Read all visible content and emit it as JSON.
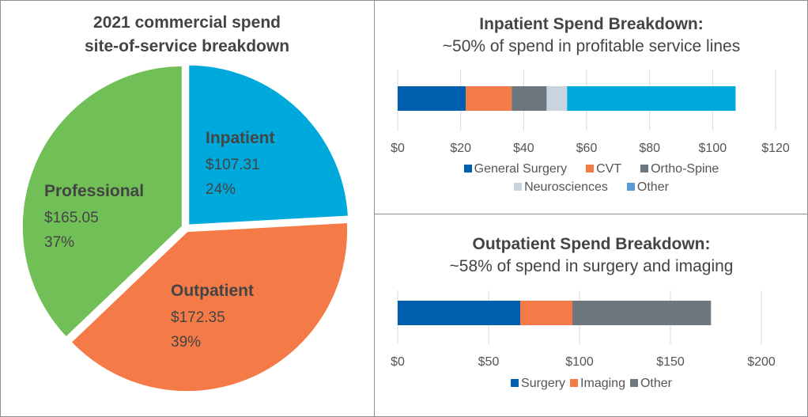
{
  "chart_data": [
    {
      "type": "pie",
      "title": "2021 commercial spend site-of-service breakdown",
      "title_lines": [
        "2021 commercial spend",
        "site-of-service breakdown"
      ],
      "slices": [
        {
          "label": "Inpatient",
          "value": 107.31,
          "value_label": "$107.31",
          "percent_label": "24%",
          "color": "#00A9DB"
        },
        {
          "label": "Outpatient",
          "value": 172.35,
          "value_label": "$172.35",
          "percent_label": "39%",
          "color": "#F47B47"
        },
        {
          "label": "Professional",
          "value": 165.05,
          "value_label": "$165.05",
          "percent_label": "37%",
          "color": "#71BF57"
        }
      ]
    },
    {
      "type": "bar",
      "orientation": "horizontal-stacked",
      "title": "Inpatient Spend Breakdown:",
      "subtitle": "~50% of spend in profitable service lines",
      "xlim": [
        0,
        120
      ],
      "xticks": [
        0,
        20,
        40,
        60,
        80,
        100,
        120
      ],
      "xtick_labels": [
        "$0",
        "$20",
        "$40",
        "$60",
        "$80",
        "$100",
        "$120"
      ],
      "grid": true,
      "legend_position": "bottom",
      "series": [
        {
          "name": "General Surgery",
          "value": 21.6,
          "color": "#005EAE"
        },
        {
          "name": "CVT",
          "value": 14.6,
          "color": "#F47B47"
        },
        {
          "name": "Ortho-Spine",
          "value": 11.1,
          "color": "#6E767E"
        },
        {
          "name": "Neurosciences",
          "value": 6.5,
          "color": "#C8D5DE"
        },
        {
          "name": "Other",
          "value": 53.5,
          "color": "#00A9DB",
          "legend_color": "#5B9BD5"
        }
      ]
    },
    {
      "type": "bar",
      "orientation": "horizontal-stacked",
      "title": "Outpatient Spend Breakdown:",
      "subtitle": "~58% of spend in surgery and imaging",
      "xlim": [
        0,
        200
      ],
      "xticks": [
        0,
        50,
        100,
        150,
        200
      ],
      "xtick_labels": [
        "$0",
        "$50",
        "$100",
        "$150",
        "$200"
      ],
      "grid": true,
      "legend_position": "bottom",
      "series": [
        {
          "name": "Surgery",
          "value": 67.4,
          "color": "#005EAE"
        },
        {
          "name": "Imaging",
          "value": 28.7,
          "color": "#F47B47"
        },
        {
          "name": "Other",
          "value": 76.2,
          "color": "#6E767E"
        }
      ]
    }
  ]
}
